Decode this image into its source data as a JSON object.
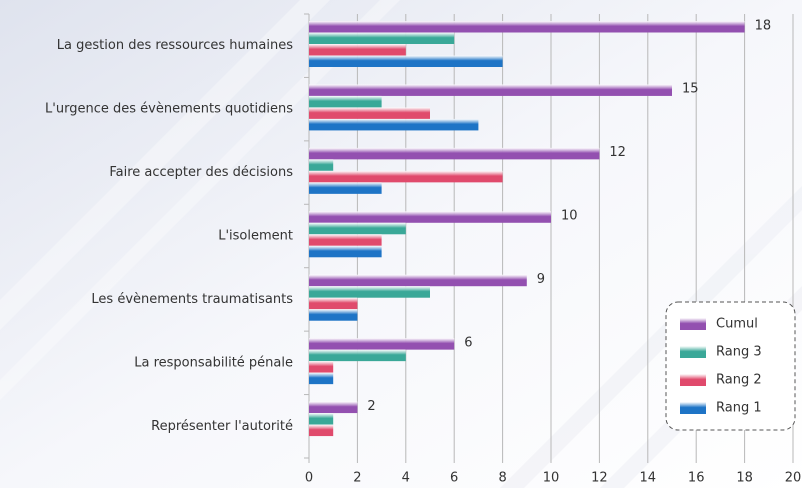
{
  "chart_data": {
    "type": "hbar",
    "categories": [
      "La gestion des ressources humaines",
      "L'urgence des évènements quotidiens",
      "Faire accepter des décisions",
      "L'isolement",
      "Les évènements traumatisants",
      "La responsabilité pénale",
      "Représenter l'autorité"
    ],
    "series": [
      {
        "name": "Cumul",
        "color": "#9350b0",
        "values": [
          18,
          15,
          12,
          10,
          9,
          6,
          2
        ]
      },
      {
        "name": "Rang 3",
        "color": "#3aa898",
        "values": [
          6,
          3,
          1,
          4,
          5,
          4,
          1
        ]
      },
      {
        "name": "Rang 2",
        "color": "#e04a6c",
        "values": [
          4,
          5,
          8,
          3,
          2,
          1,
          1
        ]
      },
      {
        "name": "Rang 1",
        "color": "#1e74c6",
        "values": [
          8,
          7,
          3,
          3,
          2,
          1,
          0
        ]
      }
    ],
    "xlim": [
      0,
      20
    ],
    "xticks": [
      0,
      2,
      4,
      6,
      8,
      10,
      12,
      14,
      16,
      18,
      20
    ],
    "grid": true,
    "legend": "bottom-right"
  }
}
